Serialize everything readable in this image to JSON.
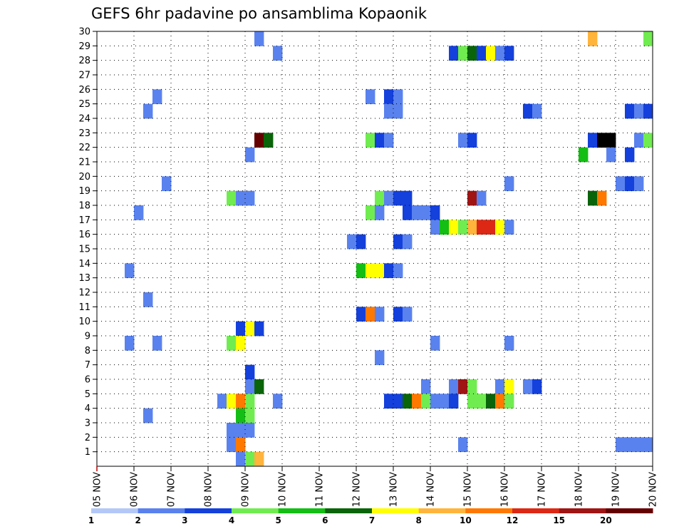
{
  "chart_data": {
    "type": "heatmap",
    "title": "GEFS 6hr padavine po ansamblima Kopaonik",
    "xlabel": "",
    "ylabel": "",
    "x_categories": [
      "05 NOV",
      "06 NOV",
      "07 NOV",
      "08 NOV",
      "09 NOV",
      "10 NOV",
      "11 NOV",
      "12 NOV",
      "13 NOV",
      "14 NOV",
      "15 NOV",
      "16 NOV",
      "17 NOV",
      "18 NOV",
      "19 NOV",
      "20 NOV"
    ],
    "y_ticks": [
      1,
      2,
      3,
      4,
      5,
      6,
      7,
      8,
      9,
      10,
      11,
      12,
      13,
      14,
      15,
      16,
      17,
      18,
      19,
      20,
      21,
      22,
      23,
      24,
      25,
      26,
      27,
      28,
      29,
      30
    ],
    "ylim": [
      0,
      30
    ],
    "xlim": [
      0,
      15
    ],
    "x_unit": "days since 05 NOV",
    "y_unit": "ensemble member",
    "grid": true,
    "colorbar": {
      "levels": [
        "1",
        "2",
        "3",
        "4",
        "5",
        "6",
        "7",
        "8",
        "10",
        "12",
        "15",
        "20"
      ],
      "colors": [
        "#b4c8f8",
        "#5a82ee",
        "#1440dc",
        "#70ec50",
        "#14be14",
        "#0a640a",
        "#ffff00",
        "#ffb43c",
        "#ff7800",
        "#dc2814",
        "#a01414",
        "#640000"
      ]
    },
    "cells": [
      [
        4.25,
        30,
        1
      ],
      [
        13.25,
        30,
        7
      ],
      [
        14.75,
        30,
        3
      ],
      [
        4.75,
        29,
        1
      ],
      [
        9.5,
        29,
        2
      ],
      [
        9.75,
        29,
        3
      ],
      [
        10,
        29,
        5
      ],
      [
        10.25,
        29,
        2
      ],
      [
        10.5,
        29,
        6
      ],
      [
        10.75,
        29,
        1
      ],
      [
        11,
        29,
        2
      ],
      [
        1.5,
        26,
        1
      ],
      [
        7.25,
        26,
        1
      ],
      [
        7.75,
        26,
        2
      ],
      [
        8,
        26,
        1
      ],
      [
        1.25,
        25,
        1
      ],
      [
        7.75,
        25,
        1
      ],
      [
        8,
        25,
        1
      ],
      [
        11.5,
        25,
        2
      ],
      [
        11.75,
        25,
        1
      ],
      [
        14.25,
        25,
        2
      ],
      [
        14.5,
        25,
        1
      ],
      [
        14.75,
        25,
        2
      ],
      [
        4.25,
        23,
        11
      ],
      [
        4.5,
        23,
        5
      ],
      [
        7.25,
        23,
        3
      ],
      [
        7.5,
        23,
        2
      ],
      [
        7.75,
        23,
        1
      ],
      [
        9.75,
        23,
        1
      ],
      [
        10,
        23,
        2
      ],
      [
        13.25,
        23,
        2
      ],
      [
        13.5,
        23,
        12
      ],
      [
        13.75,
        23,
        12
      ],
      [
        14.5,
        23,
        1
      ],
      [
        14.75,
        23,
        3
      ],
      [
        4,
        22,
        1
      ],
      [
        13,
        22,
        4
      ],
      [
        13.75,
        22,
        1
      ],
      [
        14.25,
        22,
        2
      ],
      [
        1.75,
        20,
        1
      ],
      [
        11,
        20,
        1
      ],
      [
        14,
        20,
        1
      ],
      [
        14.25,
        20,
        2
      ],
      [
        14.5,
        20,
        1
      ],
      [
        3.5,
        19,
        3
      ],
      [
        3.75,
        19,
        1
      ],
      [
        4,
        19,
        1
      ],
      [
        7.5,
        19,
        3
      ],
      [
        7.75,
        19,
        1
      ],
      [
        8,
        19,
        2
      ],
      [
        8.25,
        19,
        2
      ],
      [
        10,
        19,
        10
      ],
      [
        10.25,
        19,
        1
      ],
      [
        13.25,
        19,
        5
      ],
      [
        13.5,
        19,
        8
      ],
      [
        1,
        18,
        1
      ],
      [
        7.25,
        18,
        3
      ],
      [
        7.5,
        18,
        1
      ],
      [
        8.25,
        18,
        2
      ],
      [
        8.5,
        18,
        1
      ],
      [
        8.75,
        18,
        1
      ],
      [
        9,
        18,
        2
      ],
      [
        9,
        17,
        1
      ],
      [
        9.25,
        17,
        4
      ],
      [
        9.5,
        17,
        6
      ],
      [
        9.75,
        17,
        3
      ],
      [
        10,
        17,
        7
      ],
      [
        10.25,
        17,
        9
      ],
      [
        10.5,
        17,
        9
      ],
      [
        10.75,
        17,
        6
      ],
      [
        11,
        17,
        1
      ],
      [
        6.75,
        16,
        1
      ],
      [
        7,
        16,
        2
      ],
      [
        8,
        16,
        2
      ],
      [
        8.25,
        16,
        1
      ],
      [
        0.75,
        14,
        1
      ],
      [
        7,
        14,
        4
      ],
      [
        7.25,
        14,
        6
      ],
      [
        7.5,
        14,
        6
      ],
      [
        7.75,
        14,
        2
      ],
      [
        8,
        14,
        1
      ],
      [
        1.25,
        12,
        1
      ],
      [
        7,
        11,
        2
      ],
      [
        7.25,
        11,
        8
      ],
      [
        7.5,
        11,
        1
      ],
      [
        8,
        11,
        2
      ],
      [
        8.25,
        11,
        1
      ],
      [
        3.75,
        10,
        2
      ],
      [
        4,
        10,
        6
      ],
      [
        4.25,
        10,
        2
      ],
      [
        0.75,
        9,
        1
      ],
      [
        1.5,
        9,
        1
      ],
      [
        3.5,
        9,
        3
      ],
      [
        3.75,
        9,
        6
      ],
      [
        9,
        9,
        1
      ],
      [
        11,
        9,
        1
      ],
      [
        7.5,
        8,
        1
      ],
      [
        4,
        7,
        2
      ],
      [
        4,
        6,
        1
      ],
      [
        4.25,
        6,
        5
      ],
      [
        8.75,
        6,
        1
      ],
      [
        9.5,
        6,
        1
      ],
      [
        9.75,
        6,
        10
      ],
      [
        10,
        6,
        3
      ],
      [
        10.75,
        6,
        1
      ],
      [
        11,
        6,
        6
      ],
      [
        11.5,
        6,
        1
      ],
      [
        11.75,
        6,
        2
      ],
      [
        3.25,
        5,
        1
      ],
      [
        3.5,
        5,
        6
      ],
      [
        3.75,
        5,
        8
      ],
      [
        4,
        5,
        3
      ],
      [
        4.75,
        5,
        1
      ],
      [
        7.75,
        5,
        2
      ],
      [
        8,
        5,
        2
      ],
      [
        8.25,
        5,
        5
      ],
      [
        8.5,
        5,
        8
      ],
      [
        8.75,
        5,
        3
      ],
      [
        9,
        5,
        1
      ],
      [
        9.25,
        5,
        1
      ],
      [
        9.5,
        5,
        2
      ],
      [
        10,
        5,
        3
      ],
      [
        10.25,
        5,
        3
      ],
      [
        10.5,
        5,
        5
      ],
      [
        10.75,
        5,
        8
      ],
      [
        11,
        5,
        3
      ],
      [
        1.25,
        4,
        1
      ],
      [
        3.75,
        4,
        4
      ],
      [
        4,
        4,
        3
      ],
      [
        3.5,
        3,
        1
      ],
      [
        3.75,
        3,
        1
      ],
      [
        4,
        3,
        1
      ],
      [
        3.5,
        2,
        1
      ],
      [
        3.75,
        2,
        8
      ],
      [
        9.75,
        2,
        1
      ],
      [
        14,
        2,
        1
      ],
      [
        14.25,
        2,
        1
      ],
      [
        14.5,
        2,
        1
      ],
      [
        14.75,
        2,
        1
      ],
      [
        3.75,
        1,
        1
      ],
      [
        4,
        1,
        3
      ],
      [
        4.25,
        1,
        7
      ]
    ]
  }
}
